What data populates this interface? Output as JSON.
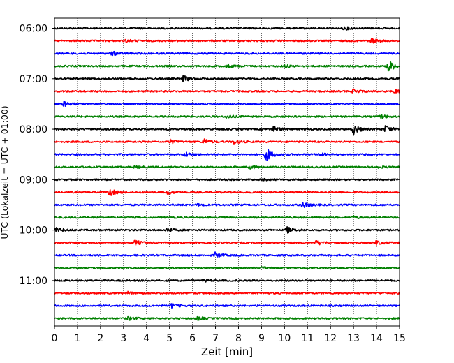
{
  "chart_data": {
    "type": "line",
    "title": "",
    "xlabel": "Zeit  [min]",
    "ylabel": "UTC (Lokalzeit = UTC + 01:00)",
    "xlim": [
      0,
      15
    ],
    "x_ticks": [
      "0",
      "1",
      "2",
      "3",
      "4",
      "5",
      "6",
      "7",
      "8",
      "9",
      "10",
      "11",
      "12",
      "13",
      "14",
      "15"
    ],
    "y_ticks": [
      "06:00",
      "07:00",
      "08:00",
      "09:00",
      "10:00",
      "11:00"
    ],
    "grid": "vertical dotted",
    "trace_interval_min": 15,
    "start_time": "06:00",
    "colors_cycle": [
      "#000000",
      "#ff0000",
      "#0000ff",
      "#008000"
    ],
    "series": [
      {
        "time": "06:00",
        "color": "#000000",
        "events": [
          {
            "t": 12.6,
            "a": 0.25
          }
        ]
      },
      {
        "time": "06:15",
        "color": "#ff0000",
        "events": [
          {
            "t": 3.1,
            "a": 0.2
          },
          {
            "t": 13.8,
            "a": 0.35
          }
        ]
      },
      {
        "time": "06:30",
        "color": "#0000ff",
        "events": [
          {
            "t": 2.5,
            "a": 0.3
          }
        ]
      },
      {
        "time": "06:45",
        "color": "#008000",
        "events": [
          {
            "t": 7.5,
            "a": 0.3
          },
          {
            "t": 10.0,
            "a": 0.25
          },
          {
            "t": 14.5,
            "a": 1.0
          }
        ]
      },
      {
        "time": "07:00",
        "color": "#000000",
        "events": [
          {
            "t": 5.6,
            "a": 0.45
          }
        ]
      },
      {
        "time": "07:15",
        "color": "#ff0000",
        "events": [
          {
            "t": 13.0,
            "a": 0.35
          },
          {
            "t": 14.8,
            "a": 0.3
          }
        ]
      },
      {
        "time": "07:30",
        "color": "#0000ff",
        "events": [
          {
            "t": 0.4,
            "a": 0.35
          }
        ]
      },
      {
        "time": "07:45",
        "color": "#008000",
        "events": [
          {
            "t": 7.5,
            "a": 0.25
          },
          {
            "t": 14.2,
            "a": 0.25
          }
        ]
      },
      {
        "time": "08:00",
        "color": "#000000",
        "events": [
          {
            "t": 9.5,
            "a": 0.45
          },
          {
            "t": 13.0,
            "a": 0.85
          },
          {
            "t": 14.4,
            "a": 0.6
          }
        ]
      },
      {
        "time": "08:15",
        "color": "#ff0000",
        "events": [
          {
            "t": 5.0,
            "a": 0.35
          },
          {
            "t": 6.5,
            "a": 0.45
          },
          {
            "t": 7.8,
            "a": 0.3
          }
        ]
      },
      {
        "time": "08:30",
        "color": "#0000ff",
        "events": [
          {
            "t": 5.7,
            "a": 0.35
          },
          {
            "t": 9.2,
            "a": 1.1
          },
          {
            "t": 11.5,
            "a": 0.2
          }
        ]
      },
      {
        "time": "08:45",
        "color": "#008000",
        "events": [
          {
            "t": 3.5,
            "a": 0.2
          },
          {
            "t": 8.5,
            "a": 0.3
          },
          {
            "t": 14.0,
            "a": 0.2
          }
        ]
      },
      {
        "time": "09:00",
        "color": "#000000",
        "events": [
          {
            "t": 9.0,
            "a": 0.15
          }
        ]
      },
      {
        "time": "09:15",
        "color": "#ff0000",
        "events": [
          {
            "t": 2.4,
            "a": 0.55
          },
          {
            "t": 4.9,
            "a": 0.3
          }
        ]
      },
      {
        "time": "09:30",
        "color": "#0000ff",
        "events": [
          {
            "t": 6.2,
            "a": 0.15
          },
          {
            "t": 10.8,
            "a": 0.45
          }
        ]
      },
      {
        "time": "09:45",
        "color": "#008000",
        "events": [
          {
            "t": 13.0,
            "a": 0.2
          }
        ]
      },
      {
        "time": "10:00",
        "color": "#000000",
        "events": [
          {
            "t": 0.1,
            "a": 0.35
          },
          {
            "t": 4.9,
            "a": 0.35
          },
          {
            "t": 10.1,
            "a": 0.5
          }
        ]
      },
      {
        "time": "10:15",
        "color": "#ff0000",
        "events": [
          {
            "t": 3.5,
            "a": 0.35
          },
          {
            "t": 11.4,
            "a": 0.35
          },
          {
            "t": 14.0,
            "a": 0.3
          }
        ]
      },
      {
        "time": "10:30",
        "color": "#0000ff",
        "events": [
          {
            "t": 7.0,
            "a": 0.45
          }
        ]
      },
      {
        "time": "10:45",
        "color": "#008000",
        "events": [
          {
            "t": 9.0,
            "a": 0.15
          }
        ]
      },
      {
        "time": "11:00",
        "color": "#000000",
        "events": [
          {
            "t": 6.5,
            "a": 0.15
          }
        ]
      },
      {
        "time": "11:15",
        "color": "#ff0000",
        "events": [
          {
            "t": 3.2,
            "a": 0.2
          }
        ]
      },
      {
        "time": "11:30",
        "color": "#0000ff",
        "events": [
          {
            "t": 5.1,
            "a": 0.35
          }
        ]
      },
      {
        "time": "11:45",
        "color": "#008000",
        "events": [
          {
            "t": 3.2,
            "a": 0.3
          },
          {
            "t": 6.2,
            "a": 0.3
          }
        ]
      }
    ]
  }
}
